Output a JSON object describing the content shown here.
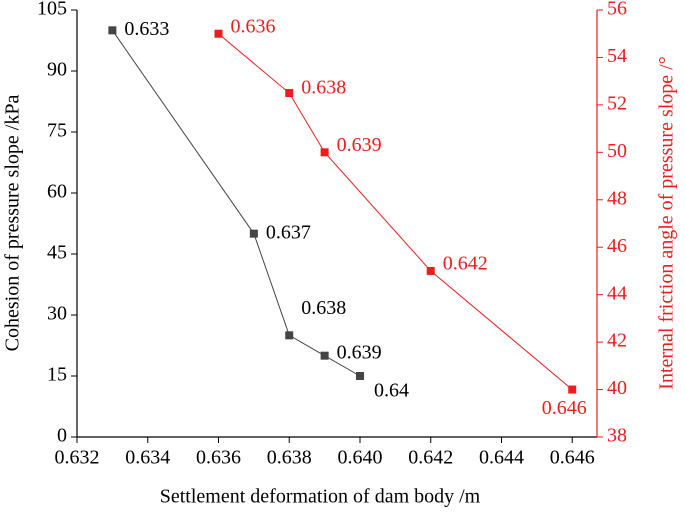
{
  "chart_data": {
    "type": "line",
    "x_label": "Settlement deformation of dam body /m",
    "y_label": "Cohesion of pressure slope /kPa",
    "y2_label": "Internal friction angle of pressure slope /°",
    "xlim": [
      0.632,
      0.6467
    ],
    "xticks": [
      0.632,
      0.634,
      0.636,
      0.638,
      {
        "value": 0.64,
        "label": "0.640"
      },
      0.642,
      0.644,
      0.646
    ],
    "ylim": [
      0,
      105
    ],
    "yticks": [
      0,
      15,
      30,
      45,
      60,
      75,
      90,
      105
    ],
    "y2lim": [
      38,
      56
    ],
    "y2ticks": [
      38,
      40,
      42,
      44,
      46,
      48,
      50,
      52,
      54,
      56
    ],
    "y2_color": "#ee1c1c",
    "series": [
      {
        "color": "#444444",
        "x": [
          0.633,
          0.637,
          0.638,
          0.639,
          0.64
        ],
        "values": [
          100,
          50,
          25,
          20,
          15
        ]
      },
      {
        "color": "#ee1c1c",
        "axis": "y2",
        "x": [
          0.636,
          0.638,
          0.639,
          0.642,
          0.646
        ],
        "values": [
          55,
          52.5,
          50,
          45,
          40
        ]
      }
    ]
  }
}
